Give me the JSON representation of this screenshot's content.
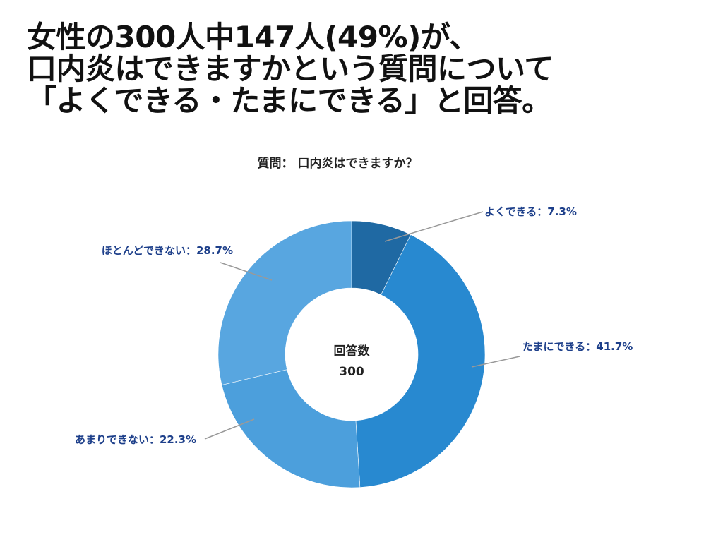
{
  "headline": {
    "line1": "女性の300人中147人(49%)が、",
    "line2": "口内炎はできますかという質問について",
    "line3": "「よくできる・たまにできる」と回答。"
  },
  "center": {
    "line1": "回答数",
    "line2": "300"
  },
  "chart_data": {
    "type": "pie",
    "subtype": "donut",
    "title": "質問： 口内炎はできますか？",
    "slices": [
      {
        "label": "よくできる",
        "value": 7.3,
        "display": "よくできる：7.3%",
        "color": "#1f69a3"
      },
      {
        "label": "たまにできる",
        "value": 41.7,
        "display": "たまにできる：41.7%",
        "color": "#2889d0"
      },
      {
        "label": "あまりできない",
        "value": 22.3,
        "display": "あまりできない：22.3%",
        "color": "#4c9fdc"
      },
      {
        "label": "ほとんどできない",
        "value": 28.7,
        "display": "ほとんどできない：28.7%",
        "color": "#58a6e0"
      }
    ],
    "label_color": "#1d3f8a",
    "leader_color": "#999999"
  }
}
